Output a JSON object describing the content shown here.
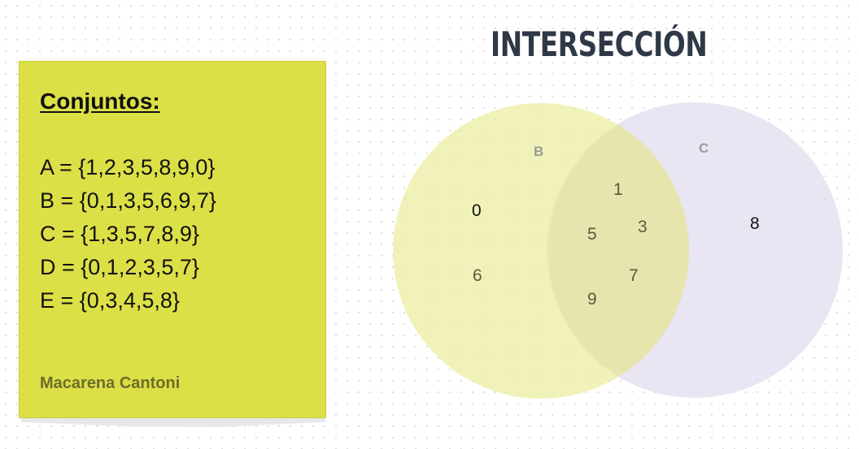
{
  "title": "INTERSECCIÓN",
  "note": {
    "heading": "Conjuntos:",
    "sets": [
      "A = {1,2,3,5,8,9,0}",
      "B = {0,1,3,5,6,9,7}",
      "C = {1,3,5,7,8,9}",
      "D = {0,1,2,3,5,7}",
      "E = {0,3,4,5,8}"
    ],
    "author": "Macarena Cantoni",
    "color": "#dce047"
  },
  "venn": {
    "set_b": {
      "label": "B",
      "color": "#e8ea8c",
      "only": [
        "0",
        "6"
      ]
    },
    "set_c": {
      "label": "C",
      "color": "#ddd8ec",
      "only": [
        "8"
      ]
    },
    "intersection": [
      "1",
      "3",
      "5",
      "7",
      "9"
    ]
  }
}
